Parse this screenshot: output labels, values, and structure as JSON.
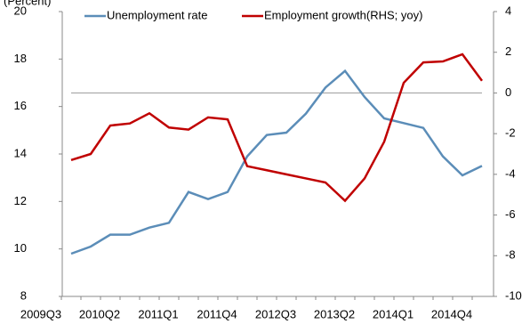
{
  "chart_data": {
    "type": "line",
    "y_label": "(Percent)",
    "categories": [
      "2009Q3",
      null,
      null,
      "2010Q2",
      null,
      null,
      "2011Q1",
      null,
      null,
      "2011Q4",
      null,
      null,
      "2012Q3",
      null,
      null,
      "2013Q2",
      null,
      null,
      "2014Q1",
      null,
      null,
      "2014Q4"
    ],
    "series": [
      {
        "name": "Unemployment rate",
        "color": "#5b8db8",
        "axis": "y",
        "values": [
          9.8,
          10.1,
          10.6,
          10.6,
          10.9,
          11.1,
          12.4,
          12.1,
          12.4,
          13.9,
          14.8,
          14.9,
          15.7,
          16.8,
          17.5,
          16.4,
          15.5,
          15.3,
          15.1,
          13.9,
          13.1,
          13.5
        ]
      },
      {
        "name": "Employment growth(RHS; yoy)",
        "color": "#c00000",
        "axis": "y2",
        "values": [
          -3.3,
          -3.0,
          -1.6,
          -1.5,
          -1.0,
          -1.7,
          -1.8,
          -1.2,
          -1.3,
          -3.6,
          -3.8,
          -4.0,
          -4.2,
          -4.4,
          -5.3,
          -4.2,
          -2.4,
          0.5,
          1.5,
          1.55,
          1.9,
          0.6
        ]
      }
    ],
    "ylim": [
      8,
      20
    ],
    "yticks": [
      8,
      10,
      12,
      14,
      16,
      18,
      20
    ],
    "y2lim": [
      -10,
      4
    ],
    "y2ticks": [
      -10,
      -8,
      -6,
      -4,
      -2,
      0,
      2,
      4
    ],
    "y2_reference_line": 0,
    "legend": "top"
  }
}
